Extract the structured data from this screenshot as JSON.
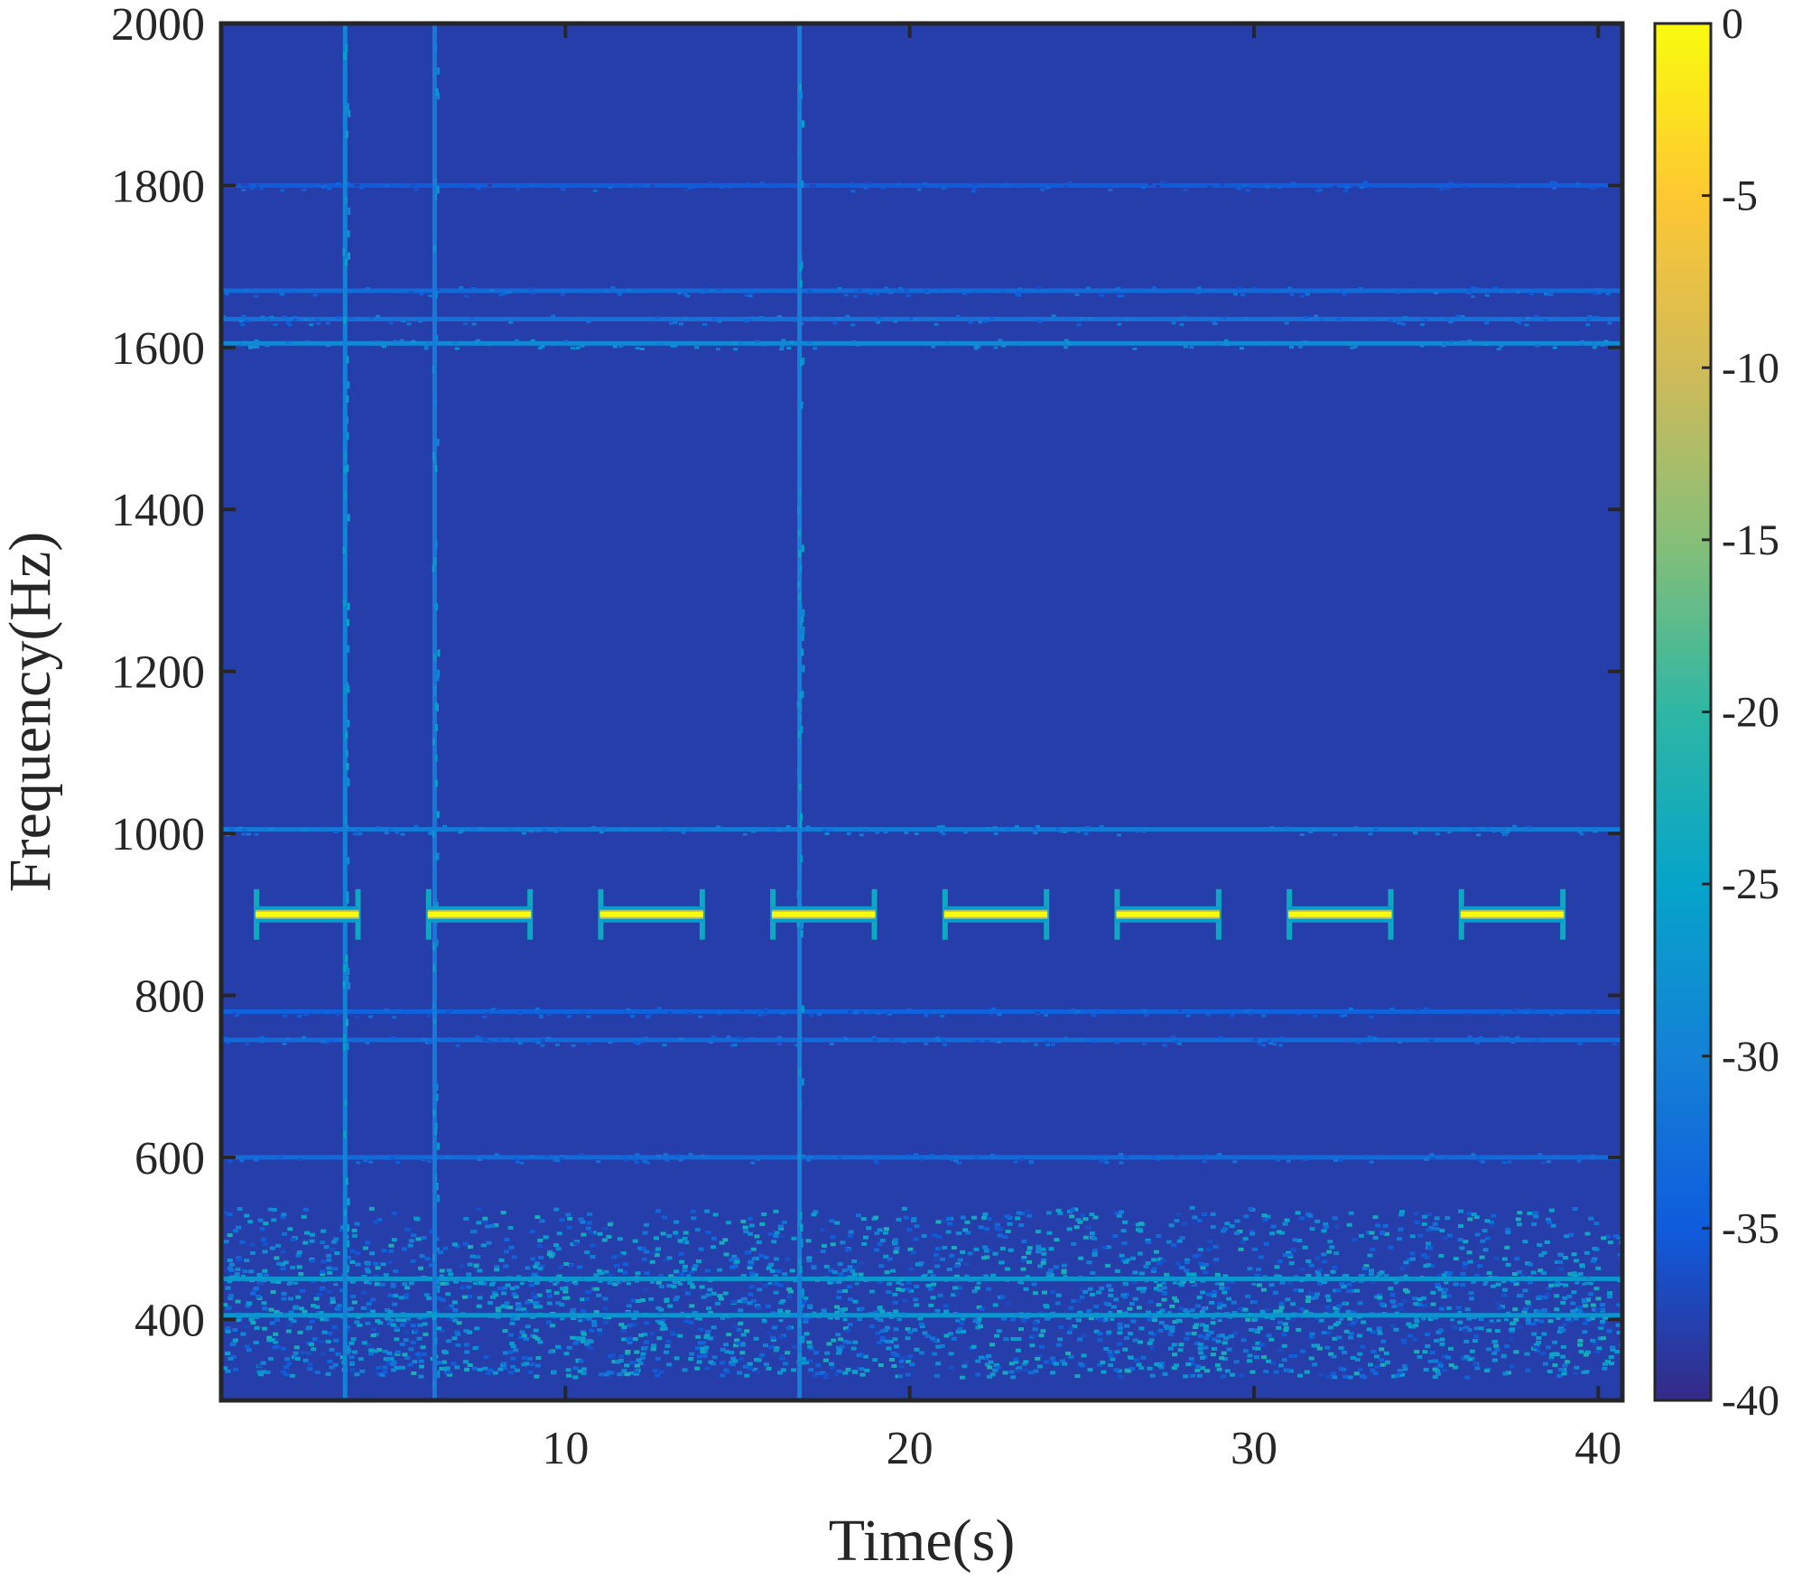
{
  "chart_data": {
    "type": "heatmap",
    "subtype": "spectrogram",
    "title": "",
    "xlabel": "Time(s)",
    "ylabel": "Frequency(Hz)",
    "xlim": [
      0,
      40.7
    ],
    "ylim": [
      300,
      2000
    ],
    "xticks": [
      10,
      20,
      30,
      40
    ],
    "xtick_labels": [
      "10",
      "20",
      "30",
      "40"
    ],
    "yticks": [
      400,
      600,
      800,
      1000,
      1200,
      1400,
      1600,
      1800,
      2000
    ],
    "ytick_labels": [
      "400",
      "600",
      "800",
      "1000",
      "1200",
      "1400",
      "1600",
      "1800",
      "2000"
    ],
    "background_level_db": -38,
    "colorbar": {
      "colormap": "parula",
      "range": [
        -40,
        0
      ],
      "ticks": [
        0,
        -5,
        -10,
        -15,
        -20,
        -25,
        -30,
        -35,
        -40
      ],
      "tick_labels": [
        "0",
        "-5",
        "-10",
        "-15",
        "-20",
        "-25",
        "-30",
        "-35",
        "-40"
      ],
      "colors": [
        "#352a87",
        "#0f5cdd",
        "#1481d6",
        "#06a4ca",
        "#2eb7a4",
        "#87bf77",
        "#d1bb59",
        "#fec832",
        "#f9fb0e"
      ]
    },
    "tone_bursts": {
      "frequency_hz": 900,
      "level_db": 0,
      "segments": [
        [
          1,
          4
        ],
        [
          6,
          9
        ],
        [
          11,
          14
        ],
        [
          16,
          19
        ],
        [
          21,
          24
        ],
        [
          26,
          29
        ],
        [
          31,
          34
        ],
        [
          36,
          39
        ]
      ]
    },
    "horizontal_lines": [
      {
        "frequency_hz": 1670,
        "level_db": -33
      },
      {
        "frequency_hz": 1635,
        "level_db": -32
      },
      {
        "frequency_hz": 1605,
        "level_db": -29
      },
      {
        "frequency_hz": 1800,
        "level_db": -35
      },
      {
        "frequency_hz": 1005,
        "level_db": -31
      },
      {
        "frequency_hz": 780,
        "level_db": -34
      },
      {
        "frequency_hz": 745,
        "level_db": -33
      },
      {
        "frequency_hz": 600,
        "level_db": -33
      },
      {
        "frequency_hz": 450,
        "level_db": -27
      },
      {
        "frequency_hz": 405,
        "level_db": -27
      }
    ],
    "vertical_transients": [
      {
        "time_s": 3.6,
        "level_db": -30
      },
      {
        "time_s": 6.2,
        "level_db": -31
      },
      {
        "time_s": 16.8,
        "level_db": -30
      }
    ],
    "noise_band": {
      "frequency_range_hz": [
        330,
        540
      ],
      "level_db_range": [
        -37,
        -22
      ]
    }
  }
}
